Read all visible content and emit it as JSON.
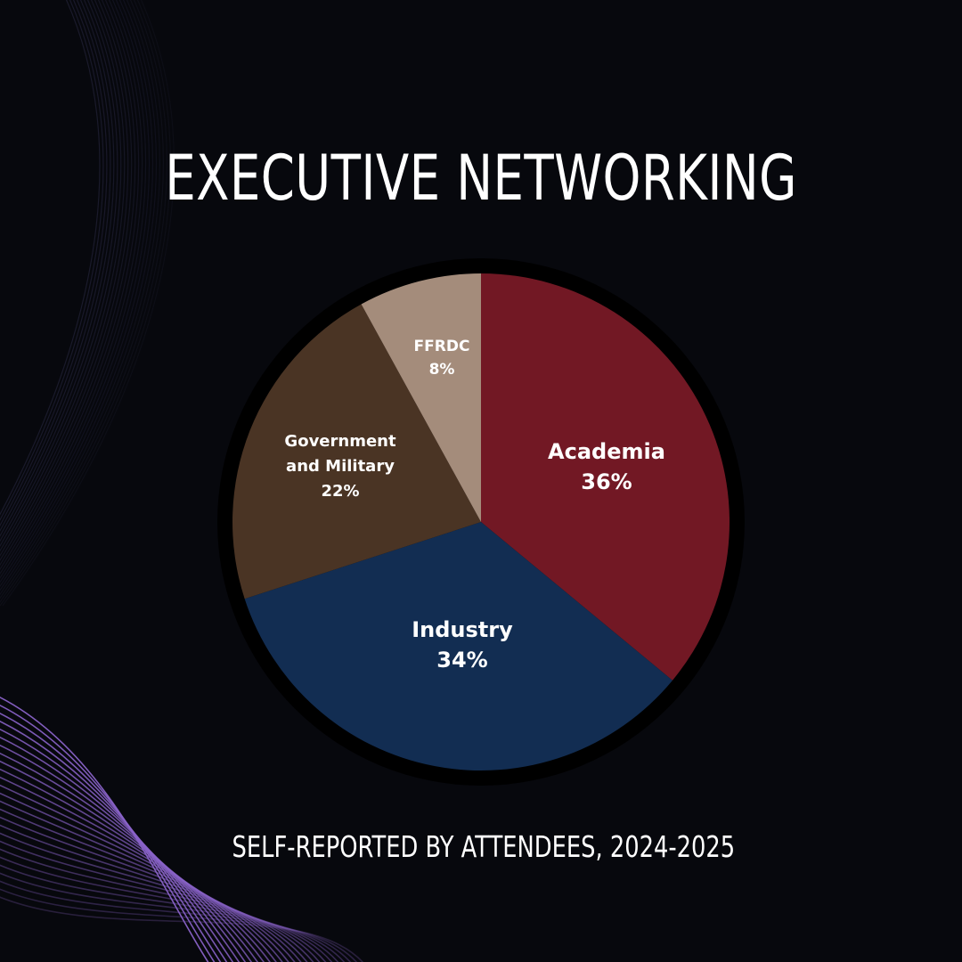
{
  "title": "EXECUTIVE NETWORKING",
  "subtitle": "SELF-REPORTED BY ATTENDEES, 2024-2025",
  "colors": {
    "background": "#07080d",
    "ring": "#000000",
    "academia": "#721824",
    "industry": "#122d52",
    "government": "#4a3424",
    "ffrdc": "#a48c7b",
    "accent_lines": "#8a63c9"
  },
  "chart_data": {
    "type": "pie",
    "title": "EXECUTIVE NETWORKING",
    "subtitle": "SELF-REPORTED BY ATTENDEES, 2024-2025",
    "slices": [
      {
        "label": "Academia",
        "label_lines": [
          "Academia"
        ],
        "percent_label": "36%",
        "value": 36,
        "color": "#721824"
      },
      {
        "label": "Industry",
        "label_lines": [
          "Industry"
        ],
        "percent_label": "34%",
        "value": 34,
        "color": "#122d52"
      },
      {
        "label": "Government and Military",
        "label_lines": [
          "Government",
          "and Military"
        ],
        "percent_label": "22%",
        "value": 22,
        "color": "#4a3424"
      },
      {
        "label": "FFRDC",
        "label_lines": [
          "FFRDC"
        ],
        "percent_label": "8%",
        "value": 8,
        "color": "#a48c7b"
      }
    ]
  }
}
